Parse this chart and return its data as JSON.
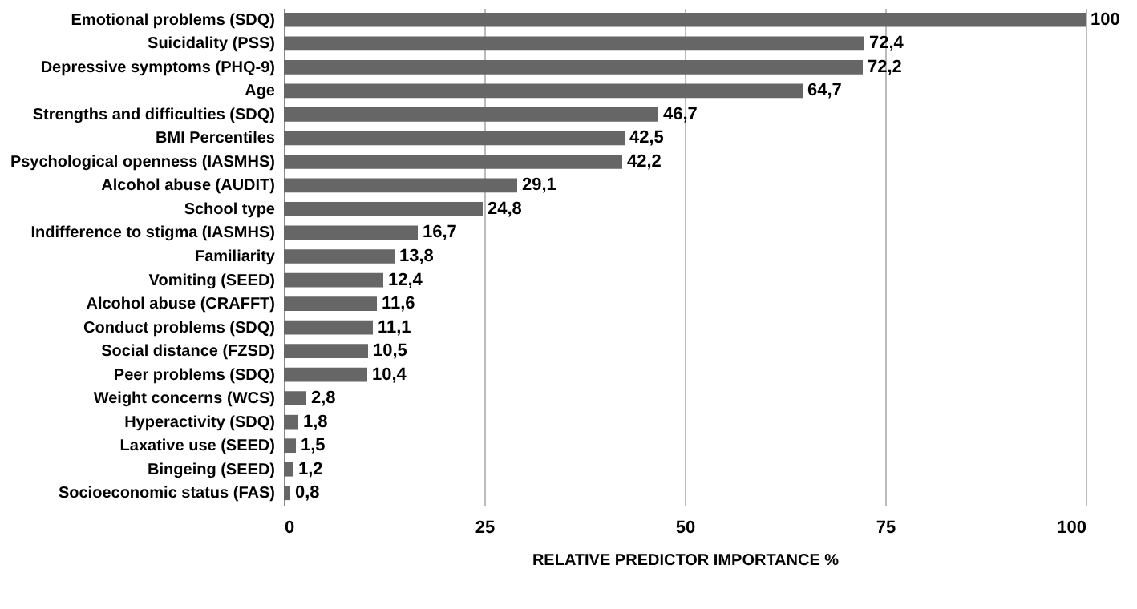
{
  "chart_data": {
    "type": "bar",
    "orientation": "horizontal",
    "xlabel": "RELATIVE PREDICTOR IMPORTANCE %",
    "categories": [
      "Emotional problems (SDQ)",
      "Suicidality (PSS)",
      "Depressive symptoms (PHQ-9)",
      "Age",
      "Strengths and difficulties (SDQ)",
      "BMI Percentiles",
      "Psychological openness (IASMHS)",
      "Alcohol abuse (AUDIT)",
      "School type",
      "Indifference to stigma (IASMHS)",
      "Familiarity",
      "Vomiting (SEED)",
      "Alcohol abuse (CRAFFT)",
      "Conduct problems (SDQ)",
      "Social distance (FZSD)",
      "Peer problems (SDQ)",
      "Weight concerns (WCS)",
      "Hyperactivity (SDQ)",
      "Laxative use (SEED)",
      "Bingeing (SEED)",
      "Socioeconomic status (FAS)"
    ],
    "values": [
      100,
      72.4,
      72.2,
      64.7,
      46.7,
      42.5,
      42.2,
      29.1,
      24.8,
      16.7,
      13.8,
      12.4,
      11.6,
      11.1,
      10.5,
      10.4,
      2.8,
      1.8,
      1.5,
      1.2,
      0.8
    ],
    "value_labels": [
      "100",
      "72,4",
      "72,2",
      "64,7",
      "46,7",
      "42,5",
      "42,2",
      "29,1",
      "24,8",
      "16,7",
      "13,8",
      "12,4",
      "11,6",
      "11,1",
      "10,5",
      "10,4",
      "2,8",
      "1,8",
      "1,5",
      "1,2",
      "0,8"
    ],
    "color": "#666666",
    "xlim": [
      0,
      100
    ],
    "xticks": [
      0,
      25,
      50,
      75,
      100
    ],
    "grid": "x"
  }
}
